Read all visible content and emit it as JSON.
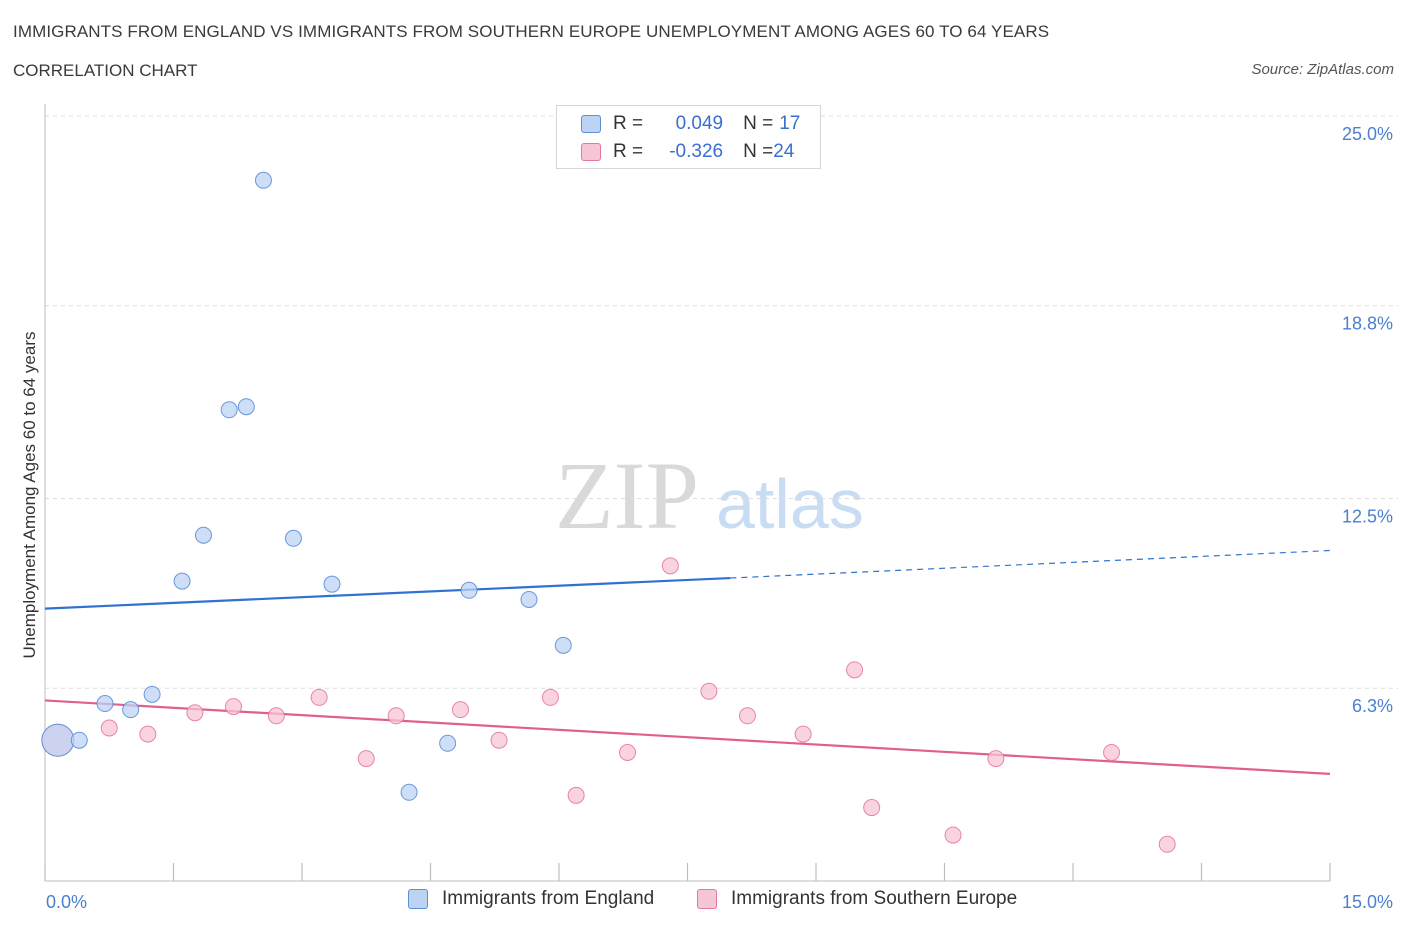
{
  "chart_data": {
    "type": "scatter",
    "title": "IMMIGRANTS FROM ENGLAND VS IMMIGRANTS FROM SOUTHERN EUROPE UNEMPLOYMENT AMONG AGES 60 TO 64 YEARS",
    "subtitle": "CORRELATION CHART",
    "source": "Source: ZipAtlas.com",
    "ylabel": "Unemployment Among Ages 60 to 64 years",
    "xlim": [
      0,
      15
    ],
    "ylim": [
      0,
      25
    ],
    "x_tick_labels": [
      "0.0%",
      "15.0%"
    ],
    "y_ticks": [
      {
        "value": 25.0,
        "label": "25.0%"
      },
      {
        "value": 18.8,
        "label": "18.8%"
      },
      {
        "value": 12.5,
        "label": "12.5%"
      },
      {
        "value": 6.3,
        "label": "6.3%"
      }
    ],
    "watermark": {
      "zip": "ZIP",
      "atlas": "atlas"
    },
    "legend": {
      "rows": [
        {
          "r_label": "R = ",
          "r_value": "0.049",
          "n_label": "N = ",
          "n_value": "17"
        },
        {
          "r_label": "R = ",
          "r_value": "-0.326",
          "n_label": "N = ",
          "n_value": "24"
        }
      ]
    },
    "series": [
      {
        "name": "Immigrants from England",
        "color": "#5b8fd6",
        "fill": "#bcd3f3",
        "trend": {
          "x0": 0,
          "y0": 8.9,
          "x1": 8.0,
          "y1": 9.9,
          "x_dash_end": 15.0,
          "y_dash_end": 10.8
        },
        "points": [
          {
            "x": 0.15,
            "y": 4.6
          },
          {
            "x": 0.4,
            "y": 4.6
          },
          {
            "x": 0.7,
            "y": 5.8
          },
          {
            "x": 1.0,
            "y": 5.6
          },
          {
            "x": 1.25,
            "y": 6.1
          },
          {
            "x": 1.6,
            "y": 9.8
          },
          {
            "x": 1.85,
            "y": 11.3
          },
          {
            "x": 2.15,
            "y": 15.4
          },
          {
            "x": 2.35,
            "y": 15.5
          },
          {
            "x": 2.55,
            "y": 22.9
          },
          {
            "x": 2.9,
            "y": 11.2
          },
          {
            "x": 3.35,
            "y": 9.7
          },
          {
            "x": 4.25,
            "y": 2.9
          },
          {
            "x": 4.7,
            "y": 4.5
          },
          {
            "x": 4.95,
            "y": 9.5
          },
          {
            "x": 5.65,
            "y": 9.2
          },
          {
            "x": 6.05,
            "y": 7.7
          }
        ]
      },
      {
        "name": "Immigrants from Southern Europe",
        "color": "#e5799d",
        "fill": "#f7c6d6",
        "trend": {
          "x0": 0,
          "y0": 5.9,
          "x1": 15.0,
          "y1": 3.5
        },
        "points": [
          {
            "x": 0.15,
            "y": 4.6
          },
          {
            "x": 0.75,
            "y": 5.0
          },
          {
            "x": 1.2,
            "y": 4.8
          },
          {
            "x": 1.75,
            "y": 5.5
          },
          {
            "x": 2.2,
            "y": 5.7
          },
          {
            "x": 2.7,
            "y": 5.4
          },
          {
            "x": 3.2,
            "y": 6.0
          },
          {
            "x": 3.75,
            "y": 4.0
          },
          {
            "x": 4.1,
            "y": 5.4
          },
          {
            "x": 4.85,
            "y": 5.6
          },
          {
            "x": 5.3,
            "y": 4.6
          },
          {
            "x": 5.9,
            "y": 6.0
          },
          {
            "x": 6.2,
            "y": 2.8
          },
          {
            "x": 6.8,
            "y": 4.2
          },
          {
            "x": 7.3,
            "y": 10.3
          },
          {
            "x": 7.75,
            "y": 6.2
          },
          {
            "x": 8.2,
            "y": 5.4
          },
          {
            "x": 8.85,
            "y": 4.8
          },
          {
            "x": 9.45,
            "y": 6.9
          },
          {
            "x": 9.65,
            "y": 2.4
          },
          {
            "x": 10.6,
            "y": 1.5
          },
          {
            "x": 11.1,
            "y": 4.0
          },
          {
            "x": 12.45,
            "y": 4.2
          },
          {
            "x": 13.1,
            "y": 1.2
          }
        ]
      }
    ]
  }
}
